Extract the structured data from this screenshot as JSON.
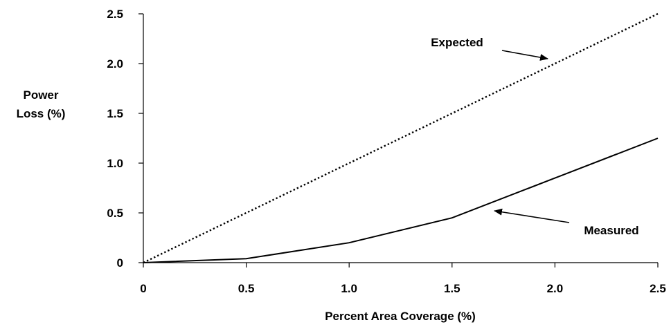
{
  "chart_data": {
    "type": "line",
    "title": "",
    "xlabel": "Percent Area Coverage (%)",
    "ylabel_lines": [
      "Power",
      "Loss (%)"
    ],
    "xlim": [
      0,
      2.5
    ],
    "ylim": [
      0,
      2.5
    ],
    "x_ticks": [
      0,
      0.5,
      1.0,
      1.5,
      2.0,
      2.5
    ],
    "x_tick_labels": [
      "0",
      "0.5",
      "1.0",
      "1.5",
      "2.0",
      "2.5"
    ],
    "y_ticks": [
      0,
      0.5,
      1.0,
      1.5,
      2.0,
      2.5
    ],
    "y_tick_labels": [
      "0",
      "0.5",
      "1.0",
      "1.5",
      "2.0",
      "2.5"
    ],
    "grid": false,
    "legend": "none",
    "series": [
      {
        "name": "Expected",
        "line_style": "dotted",
        "color": "#000000",
        "x": [
          0,
          0.5,
          1.0,
          1.5,
          2.0,
          2.5
        ],
        "y": [
          0,
          0.5,
          1.0,
          1.5,
          2.0,
          2.5
        ]
      },
      {
        "name": "Measured",
        "line_style": "solid",
        "color": "#000000",
        "x": [
          0,
          0.5,
          1.0,
          1.5,
          2.0,
          2.5
        ],
        "y": [
          0,
          0.04,
          0.2,
          0.45,
          0.85,
          1.25
        ]
      }
    ],
    "annotations": [
      {
        "text": "Expected",
        "target_series": "Expected",
        "point": [
          1.9,
          1.9
        ]
      },
      {
        "text": "Measured",
        "target_series": "Measured",
        "point": [
          1.7,
          0.53
        ]
      }
    ]
  }
}
